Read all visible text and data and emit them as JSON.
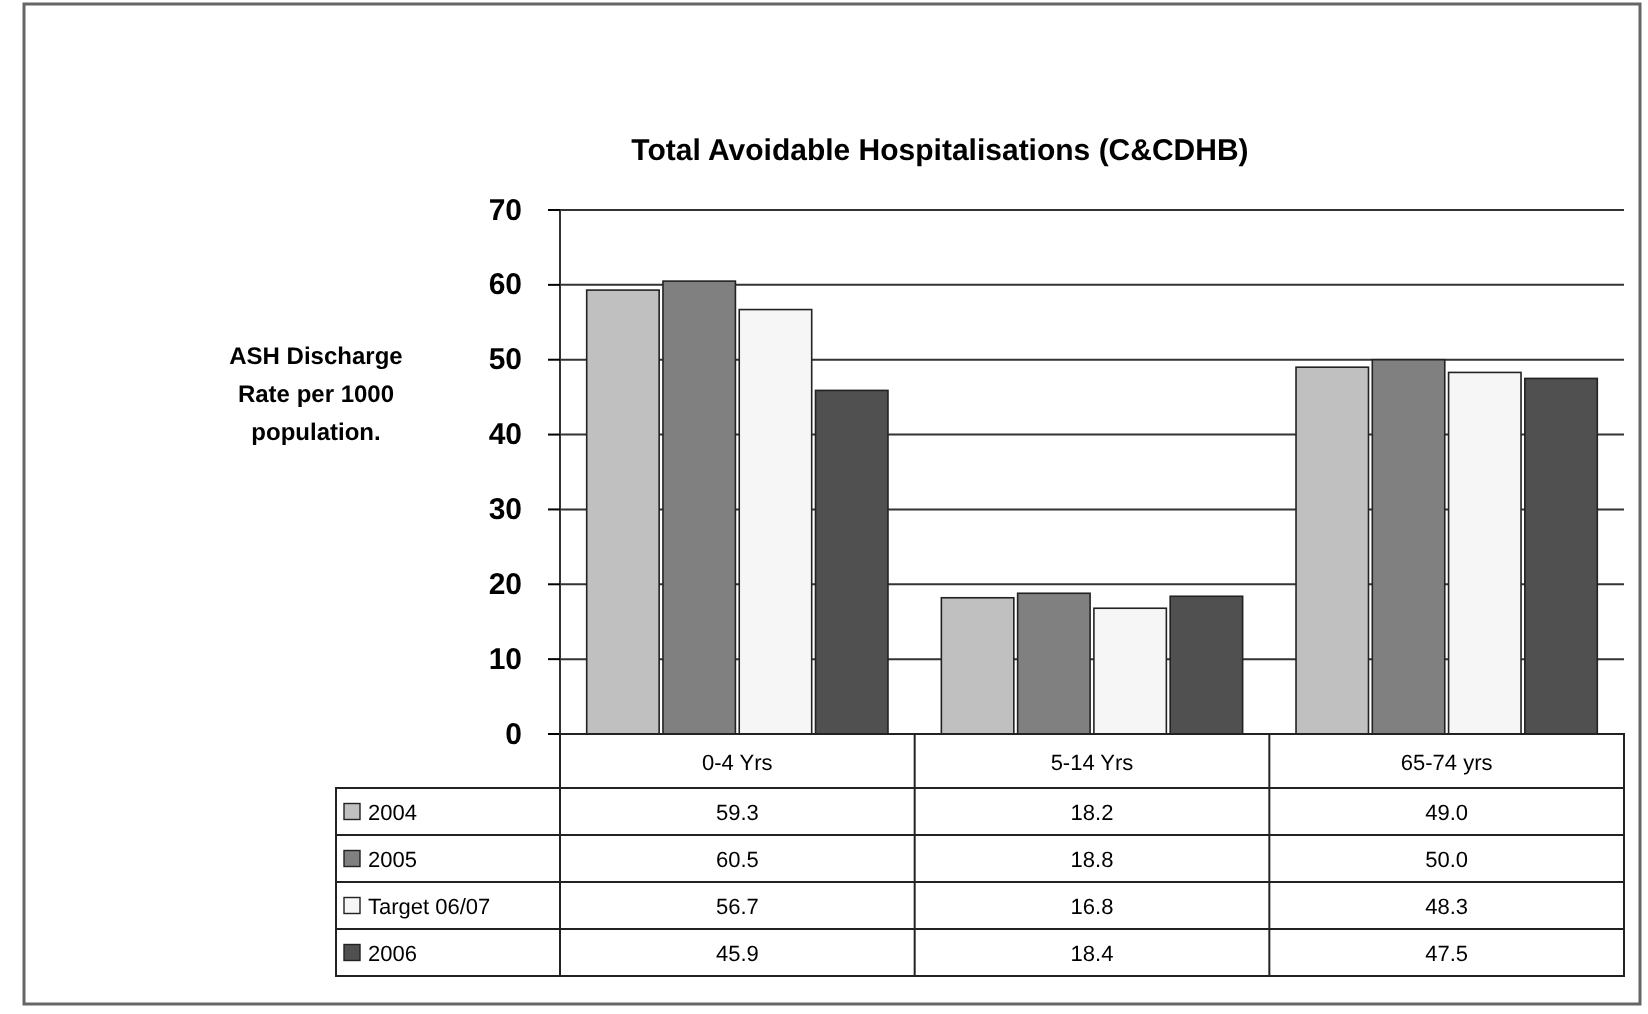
{
  "chart_data": {
    "type": "bar",
    "title": "Total  Avoidable Hospitalisations (C&CDHB)",
    "ylabel": "ASH Discharge Rate per 1000 population.",
    "categories": [
      "0-4 Yrs",
      "5-14 Yrs",
      "65-74 yrs"
    ],
    "series": [
      {
        "name": "2004",
        "color": "#c0c0c0",
        "values": [
          59.3,
          18.2,
          49.0
        ],
        "value_labels": [
          "59.3",
          "18.2",
          "49.0"
        ]
      },
      {
        "name": "2005",
        "color": "#808080",
        "values": [
          60.5,
          18.8,
          50.0
        ],
        "value_labels": [
          "60.5",
          "18.8",
          "50.0"
        ]
      },
      {
        "name": "Target 06/07",
        "color": "#f6f6f6",
        "values": [
          56.7,
          16.8,
          48.3
        ],
        "value_labels": [
          "56.7",
          "16.8",
          "48.3"
        ]
      },
      {
        "name": "2006",
        "color": "#505050",
        "values": [
          45.9,
          18.4,
          47.5
        ],
        "value_labels": [
          "45.9",
          "18.4",
          "47.5"
        ]
      }
    ],
    "ylim": [
      0,
      70
    ],
    "yticks": [
      0,
      10,
      20,
      30,
      40,
      50,
      60,
      70
    ],
    "grid": "y",
    "legend": "bottom"
  }
}
